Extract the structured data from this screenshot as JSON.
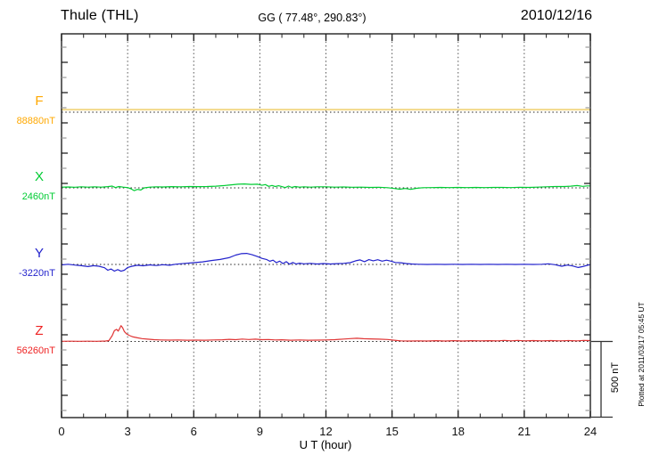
{
  "header": {
    "station": "Thule (THL)",
    "coords": "GG ( 77.48°, 290.83°)",
    "date": "2010/12/16"
  },
  "chart_data": {
    "type": "line",
    "title": "Thule (THL)",
    "subtitle": "GG ( 77.48°, 290.83°)",
    "date": "2010/12/16",
    "xlabel": "U T (hour)",
    "x_range": [
      0,
      24
    ],
    "x_ticks": [
      0,
      3,
      6,
      9,
      12,
      15,
      18,
      21,
      24
    ],
    "x_minor_step_hours": 1,
    "y_units": "nT",
    "y_tick_step_nT": 100,
    "grid": "dotted vertical every 3 hours, dotted horizontal baseline per trace",
    "scale_bar": {
      "label": "500 nT",
      "nT": 500
    },
    "annotation": "Plotted at 2011/03/17 05:45 UT",
    "series": [
      {
        "name": "F",
        "value_label": "88880nT",
        "label_color": "#FFA800",
        "color": "#F2D98A",
        "width": 2,
        "points_hour_nT": [
          [
            0,
            17
          ],
          [
            24,
            17
          ]
        ]
      },
      {
        "name": "X",
        "value_label": "2460nT",
        "label_color": "#00CC33",
        "color": "#00CC33",
        "width": 1.2,
        "points_hour_nT": [
          [
            0,
            5
          ],
          [
            0.3,
            6
          ],
          [
            0.6,
            4
          ],
          [
            0.9,
            7
          ],
          [
            1.2,
            5
          ],
          [
            1.5,
            7
          ],
          [
            1.8,
            5
          ],
          [
            2.1,
            8
          ],
          [
            2.3,
            12
          ],
          [
            2.45,
            2
          ],
          [
            2.6,
            9
          ],
          [
            2.8,
            5
          ],
          [
            3.0,
            2
          ],
          [
            3.15,
            -6
          ],
          [
            3.3,
            -18
          ],
          [
            3.45,
            -10
          ],
          [
            3.6,
            -14
          ],
          [
            3.75,
            0
          ],
          [
            4.0,
            5
          ],
          [
            4.3,
            7
          ],
          [
            4.6,
            6
          ],
          [
            5.0,
            8
          ],
          [
            5.4,
            7
          ],
          [
            5.8,
            9
          ],
          [
            6.2,
            8
          ],
          [
            6.6,
            9
          ],
          [
            7.0,
            11
          ],
          [
            7.4,
            15
          ],
          [
            7.7,
            20
          ],
          [
            8.0,
            24
          ],
          [
            8.3,
            26
          ],
          [
            8.6,
            23
          ],
          [
            8.9,
            24
          ],
          [
            9.1,
            17
          ],
          [
            9.25,
            22
          ],
          [
            9.4,
            10
          ],
          [
            9.55,
            16
          ],
          [
            9.7,
            9
          ],
          [
            9.85,
            14
          ],
          [
            10.0,
            8
          ],
          [
            10.15,
            2
          ],
          [
            10.3,
            12
          ],
          [
            10.45,
            3
          ],
          [
            10.6,
            9
          ],
          [
            10.8,
            5
          ],
          [
            11.0,
            7
          ],
          [
            11.3,
            5
          ],
          [
            11.6,
            7
          ],
          [
            12.0,
            7
          ],
          [
            12.4,
            5
          ],
          [
            12.8,
            6
          ],
          [
            13.2,
            4
          ],
          [
            13.6,
            5
          ],
          [
            14.0,
            3
          ],
          [
            14.4,
            4
          ],
          [
            14.8,
            1
          ],
          [
            15.1,
            -4
          ],
          [
            15.35,
            -9
          ],
          [
            15.6,
            -4
          ],
          [
            15.85,
            -10
          ],
          [
            16.1,
            -3
          ],
          [
            16.4,
            1
          ],
          [
            16.8,
            2
          ],
          [
            17.2,
            3
          ],
          [
            17.6,
            2
          ],
          [
            18.0,
            3
          ],
          [
            18.4,
            2
          ],
          [
            18.8,
            3
          ],
          [
            19.2,
            2
          ],
          [
            19.6,
            3
          ],
          [
            20.0,
            3
          ],
          [
            20.4,
            2
          ],
          [
            20.8,
            4
          ],
          [
            21.2,
            3
          ],
          [
            21.6,
            5
          ],
          [
            22.0,
            7
          ],
          [
            22.4,
            9
          ],
          [
            22.8,
            9
          ],
          [
            23.1,
            11
          ],
          [
            23.4,
            15
          ],
          [
            23.65,
            10
          ],
          [
            23.85,
            13
          ],
          [
            24,
            13
          ]
        ]
      },
      {
        "name": "Y",
        "value_label": "-3220nT",
        "label_color": "#2222CC",
        "color": "#2222CC",
        "width": 1.2,
        "points_hour_nT": [
          [
            0,
            -3
          ],
          [
            0.3,
            1
          ],
          [
            0.6,
            -4
          ],
          [
            0.9,
            -8
          ],
          [
            1.2,
            -14
          ],
          [
            1.45,
            -8
          ],
          [
            1.7,
            -12
          ],
          [
            1.95,
            -22
          ],
          [
            2.1,
            -38
          ],
          [
            2.25,
            -30
          ],
          [
            2.4,
            -44
          ],
          [
            2.55,
            -34
          ],
          [
            2.7,
            -45
          ],
          [
            2.85,
            -38
          ],
          [
            3.0,
            -20
          ],
          [
            3.2,
            -12
          ],
          [
            3.45,
            -5
          ],
          [
            3.7,
            -9
          ],
          [
            4.0,
            -3
          ],
          [
            4.3,
            -7
          ],
          [
            4.6,
            -2
          ],
          [
            4.9,
            -5
          ],
          [
            5.2,
            2
          ],
          [
            5.6,
            7
          ],
          [
            6.0,
            12
          ],
          [
            6.4,
            17
          ],
          [
            6.8,
            26
          ],
          [
            7.2,
            33
          ],
          [
            7.6,
            45
          ],
          [
            7.9,
            62
          ],
          [
            8.15,
            71
          ],
          [
            8.4,
            73
          ],
          [
            8.65,
            64
          ],
          [
            8.9,
            52
          ],
          [
            9.1,
            40
          ],
          [
            9.3,
            33
          ],
          [
            9.45,
            21
          ],
          [
            9.6,
            28
          ],
          [
            9.75,
            12
          ],
          [
            9.9,
            22
          ],
          [
            10.05,
            6
          ],
          [
            10.2,
            18
          ],
          [
            10.35,
            2
          ],
          [
            10.5,
            13
          ],
          [
            10.65,
            3
          ],
          [
            10.8,
            8
          ],
          [
            11.0,
            4
          ],
          [
            11.3,
            7
          ],
          [
            11.6,
            3
          ],
          [
            11.9,
            6
          ],
          [
            12.2,
            3
          ],
          [
            12.5,
            5
          ],
          [
            12.8,
            7
          ],
          [
            13.1,
            12
          ],
          [
            13.35,
            24
          ],
          [
            13.55,
            30
          ],
          [
            13.75,
            18
          ],
          [
            13.95,
            32
          ],
          [
            14.15,
            24
          ],
          [
            14.35,
            31
          ],
          [
            14.55,
            22
          ],
          [
            14.75,
            28
          ],
          [
            14.95,
            22
          ],
          [
            15.15,
            13
          ],
          [
            15.4,
            11
          ],
          [
            15.65,
            6
          ],
          [
            15.9,
            3
          ],
          [
            16.2,
            1
          ],
          [
            16.6,
            0
          ],
          [
            17.0,
            1
          ],
          [
            17.4,
            0
          ],
          [
            17.8,
            1
          ],
          [
            18.2,
            0
          ],
          [
            18.6,
            1
          ],
          [
            19.0,
            0
          ],
          [
            19.4,
            1
          ],
          [
            19.8,
            0
          ],
          [
            20.2,
            1
          ],
          [
            20.6,
            0
          ],
          [
            21.0,
            1
          ],
          [
            21.4,
            0
          ],
          [
            21.8,
            1
          ],
          [
            22.1,
            4
          ],
          [
            22.4,
            -2
          ],
          [
            22.7,
            -12
          ],
          [
            22.95,
            -4
          ],
          [
            23.2,
            -10
          ],
          [
            23.45,
            -20
          ],
          [
            23.65,
            -14
          ],
          [
            23.85,
            -6
          ],
          [
            24,
            -1
          ]
        ]
      },
      {
        "name": "Z",
        "value_label": "56260nT",
        "label_color": "#EE2222",
        "color": "#E03535",
        "width": 1.2,
        "points_hour_nT": [
          [
            0,
            1
          ],
          [
            0.4,
            2
          ],
          [
            0.8,
            1
          ],
          [
            1.2,
            2
          ],
          [
            1.6,
            1
          ],
          [
            2.0,
            3
          ],
          [
            2.15,
            6
          ],
          [
            2.3,
            38
          ],
          [
            2.4,
            72
          ],
          [
            2.5,
            80
          ],
          [
            2.57,
            68
          ],
          [
            2.64,
            86
          ],
          [
            2.7,
            104
          ],
          [
            2.77,
            92
          ],
          [
            2.85,
            66
          ],
          [
            2.95,
            50
          ],
          [
            3.1,
            38
          ],
          [
            3.25,
            30
          ],
          [
            3.45,
            24
          ],
          [
            3.65,
            19
          ],
          [
            3.9,
            15
          ],
          [
            4.2,
            12
          ],
          [
            4.5,
            10
          ],
          [
            4.9,
            9
          ],
          [
            5.3,
            10
          ],
          [
            5.7,
            8
          ],
          [
            6.1,
            9
          ],
          [
            6.5,
            8
          ],
          [
            6.9,
            10
          ],
          [
            7.3,
            11
          ],
          [
            7.6,
            14
          ],
          [
            7.9,
            12
          ],
          [
            8.2,
            16
          ],
          [
            8.5,
            13
          ],
          [
            8.8,
            15
          ],
          [
            9.1,
            12
          ],
          [
            9.4,
            13
          ],
          [
            9.7,
            10
          ],
          [
            10.0,
            11
          ],
          [
            10.4,
            8
          ],
          [
            10.8,
            10
          ],
          [
            11.2,
            8
          ],
          [
            11.6,
            9
          ],
          [
            12.0,
            10
          ],
          [
            12.4,
            12
          ],
          [
            12.8,
            16
          ],
          [
            13.1,
            19
          ],
          [
            13.4,
            21
          ],
          [
            13.7,
            18
          ],
          [
            14.0,
            17
          ],
          [
            14.4,
            15
          ],
          [
            14.8,
            13
          ],
          [
            15.1,
            8
          ],
          [
            15.4,
            4
          ],
          [
            15.8,
            3
          ],
          [
            16.2,
            4
          ],
          [
            16.6,
            3
          ],
          [
            17.0,
            5
          ],
          [
            17.4,
            3
          ],
          [
            17.8,
            5
          ],
          [
            18.2,
            3
          ],
          [
            18.6,
            5
          ],
          [
            19.0,
            4
          ],
          [
            19.4,
            5
          ],
          [
            19.8,
            4
          ],
          [
            20.1,
            7
          ],
          [
            20.4,
            4
          ],
          [
            20.7,
            7
          ],
          [
            21.0,
            4
          ],
          [
            21.4,
            6
          ],
          [
            21.8,
            4
          ],
          [
            22.2,
            6
          ],
          [
            22.6,
            4
          ],
          [
            23.0,
            6
          ],
          [
            23.4,
            4
          ],
          [
            23.7,
            7
          ],
          [
            24,
            6
          ]
        ]
      }
    ]
  }
}
